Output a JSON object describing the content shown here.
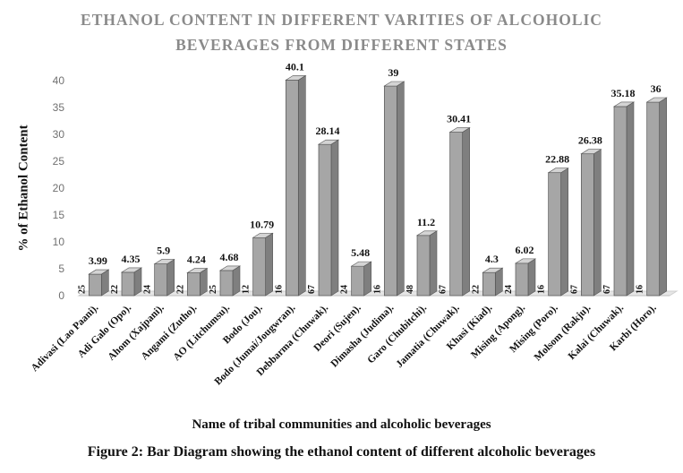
{
  "figure_caption": "Figure 2: Bar Diagram showing the ethanol content of different alcoholic beverages",
  "chart_data": {
    "type": "bar",
    "title_lines": [
      "ETHANOL CONTENT IN DIFFERENT VARITIES OF ALCOHOLIC",
      "BEVERAGES FROM DIFFERENT STATES"
    ],
    "xlabel": "Name of tribal communities and alcoholic beverages",
    "ylabel": "% of Ethanol Content",
    "ylim": [
      0,
      40
    ],
    "yticks": [
      0,
      5,
      10,
      15,
      20,
      25,
      30,
      35,
      40
    ],
    "grid": false,
    "style": "3d",
    "bar_color": "#a6a6a6",
    "categories": [
      "Adivasi (Lao Paani).",
      "Adi Galo (Opo).",
      "Ahom (Xajpani).",
      "Angami (Zutho).",
      "AO (Litchumsu).",
      "Bodo (Jou).",
      "Bodo (Jumai/Jougwran).",
      "Debbarma (Chuwak).",
      "Deori (Sujen).",
      "Dimasha (Judima).",
      "Garo (Chubitchi).",
      "Jamatia (Chuwak).",
      "Khasi (Kiad).",
      "Mising (Apong).",
      "Mising (Poro).",
      "Molsom (Rakju).",
      "Kalai (Chuwak).",
      "Karbi (Horo)."
    ],
    "values": [
      3.99,
      4.35,
      5.9,
      4.24,
      4.68,
      10.79,
      40.1,
      28.14,
      5.48,
      39,
      11.2,
      30.41,
      4.3,
      6.02,
      22.88,
      26.38,
      35.18,
      36
    ],
    "data_labels": [
      "3.99",
      "4.35",
      "5.9",
      "4.24",
      "4.68",
      "10.79",
      "40.1",
      "28.14",
      "5.48",
      "39",
      "11.2",
      "30.41",
      "4.3",
      "6.02",
      "22.88",
      "26.38",
      "35.18",
      "36"
    ],
    "sample_counts": [
      "25",
      "22",
      "24",
      "22",
      "25",
      "12",
      "16",
      "67",
      "24",
      "16",
      "48",
      "67",
      "22",
      "24",
      "16",
      "67",
      "67",
      "16"
    ]
  }
}
